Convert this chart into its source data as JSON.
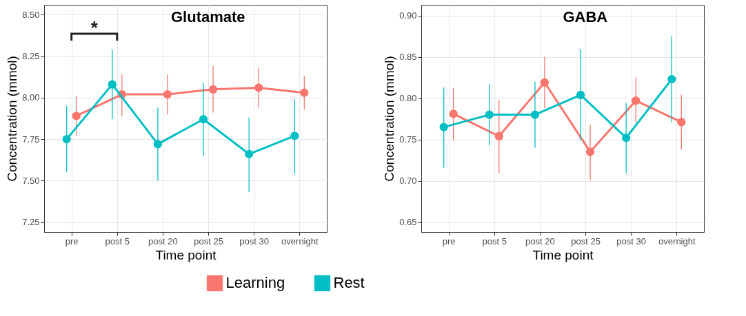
{
  "chart_data": [
    {
      "type": "line",
      "title": "Glutamate",
      "xlabel": "Time point",
      "ylabel": "Concentration (mmol)",
      "categories": [
        "pre",
        "post 5",
        "post 20",
        "post 25",
        "post 30",
        "overnight"
      ],
      "ylim": [
        7.19,
        8.56
      ],
      "yticks": [
        {
          "value": 7.25,
          "label": "7.25"
        },
        {
          "value": 7.5,
          "label": "7.50"
        },
        {
          "value": 7.75,
          "label": "7.75"
        },
        {
          "value": 8.0,
          "label": "8.00"
        },
        {
          "value": 8.25,
          "label": "8.25"
        },
        {
          "value": 8.5,
          "label": "8.50"
        }
      ],
      "grid": true,
      "marker": "circle",
      "legend": "bottom",
      "annotations": [
        "*"
      ],
      "series": [
        {
          "name": "Learning",
          "color": "#f8766d",
          "values": [
            7.89,
            8.02,
            8.02,
            8.05,
            8.06,
            8.03
          ],
          "errors": [
            [
              7.77,
              8.01
            ],
            [
              7.89,
              8.14
            ],
            [
              7.9,
              8.14
            ],
            [
              7.91,
              8.19
            ],
            [
              7.94,
              8.18
            ],
            [
              7.93,
              8.13
            ]
          ]
        },
        {
          "name": "Rest",
          "color": "#00bfc4",
          "values": [
            7.75,
            8.08,
            7.72,
            7.87,
            7.66,
            7.77
          ],
          "errors": [
            [
              7.55,
              7.95
            ],
            [
              7.87,
              8.29
            ],
            [
              7.5,
              7.94
            ],
            [
              7.65,
              8.09
            ],
            [
              7.43,
              7.88
            ],
            [
              7.54,
              7.99
            ]
          ]
        }
      ]
    },
    {
      "type": "line",
      "title": "GABA",
      "xlabel": "Time point",
      "ylabel": "Concentration (mmol)",
      "categories": [
        "pre",
        "post 5",
        "post 20",
        "post 25",
        "post 30",
        "overnight"
      ],
      "ylim": [
        0.638,
        0.913
      ],
      "yticks": [
        {
          "value": 0.65,
          "label": "0.65"
        },
        {
          "value": 0.7,
          "label": "0.70"
        },
        {
          "value": 0.75,
          "label": "0.75"
        },
        {
          "value": 0.8,
          "label": "0.80"
        },
        {
          "value": 0.85,
          "label": "0.85"
        },
        {
          "value": 0.9,
          "label": "0.90"
        }
      ],
      "grid": true,
      "marker": "circle",
      "legend": "bottom",
      "series": [
        {
          "name": "Learning",
          "color": "#f8766d",
          "values": [
            0.781,
            0.754,
            0.819,
            0.735,
            0.797,
            0.771
          ],
          "errors": [
            [
              0.749,
              0.812
            ],
            [
              0.709,
              0.798
            ],
            [
              0.788,
              0.85
            ],
            [
              0.701,
              0.768
            ],
            [
              0.77,
              0.825
            ],
            [
              0.738,
              0.804
            ]
          ]
        },
        {
          "name": "Rest",
          "color": "#00bfc4",
          "values": [
            0.765,
            0.78,
            0.78,
            0.804,
            0.752,
            0.823
          ],
          "errors": [
            [
              0.716,
              0.813
            ],
            [
              0.743,
              0.817
            ],
            [
              0.74,
              0.82
            ],
            [
              0.749,
              0.859
            ],
            [
              0.709,
              0.794
            ],
            [
              0.771,
              0.875
            ]
          ]
        }
      ]
    }
  ]
}
